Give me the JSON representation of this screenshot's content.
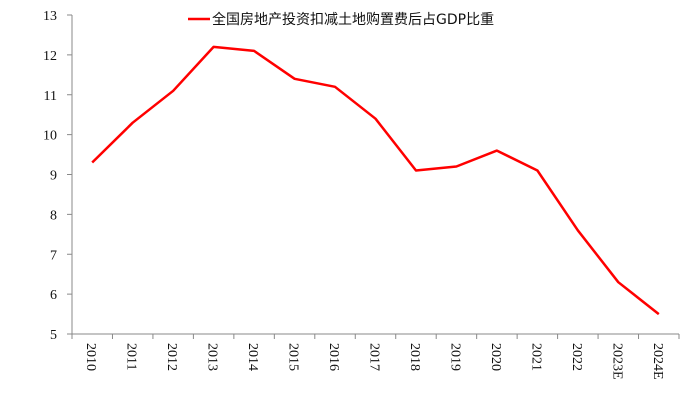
{
  "chart_data": {
    "type": "line",
    "title": "",
    "xlabel": "",
    "ylabel": "",
    "categories": [
      "2010",
      "2011",
      "2012",
      "2013",
      "2014",
      "2015",
      "2016",
      "2017",
      "2018",
      "2019",
      "2020",
      "2021",
      "2022",
      "2023E",
      "2024E"
    ],
    "series": [
      {
        "name": "全国房地产投资扣减土地购置费后占GDP比重",
        "color": "#ff0000",
        "values": [
          9.3,
          10.3,
          11.1,
          12.2,
          12.1,
          11.4,
          11.2,
          10.4,
          9.1,
          9.2,
          9.6,
          9.1,
          7.6,
          6.3,
          5.5
        ]
      }
    ],
    "ylim": [
      5,
      13
    ],
    "yticks": [
      5,
      6,
      7,
      8,
      9,
      10,
      11,
      12,
      13
    ],
    "grid": false,
    "legend_position": "top-center"
  },
  "colors": {
    "axis": "#898989",
    "line": "#ff0000",
    "text": "#111111"
  }
}
